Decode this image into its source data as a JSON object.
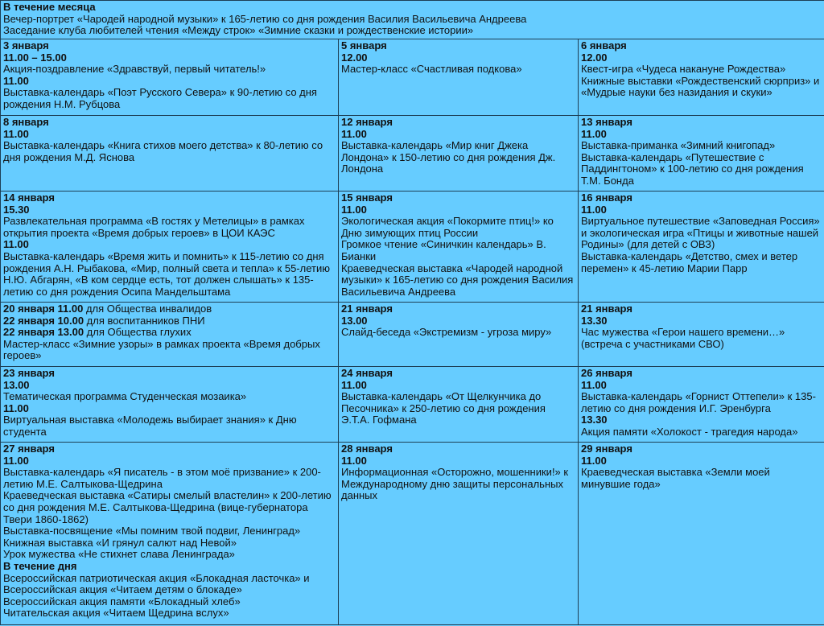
{
  "colors": {
    "background": "#66ccff",
    "border": "#1d3f55",
    "text": "#111111"
  },
  "month_section": {
    "lines": [
      {
        "b": "В течение месяца"
      },
      {
        "t": "Вечер-портрет «Чародей народной музыки» к 165-летию со дня рождения Василия Васильевича Андреева"
      },
      {
        "t": "Заседание клуба любителей чтения «Между строк» «Зимние сказки и рождественские истории»"
      }
    ]
  },
  "rows": [
    [
      {
        "lines": [
          {
            "b": "3 января"
          },
          {
            "b": "11.00 – 15.00"
          },
          {
            "t": "Акция-поздравление «Здравствуй, первый читатель!»"
          },
          {
            "b": "11.00"
          },
          {
            "t": "Выставка-календарь «Поэт Русского Севера» к 90-летию со дня рождения Н.М. Рубцова"
          }
        ]
      },
      {
        "lines": [
          {
            "b": "5 января"
          },
          {
            "b": "12.00"
          },
          {
            "t": "Мастер-класс «Счастливая подкова»"
          }
        ]
      },
      {
        "lines": [
          {
            "b": "6 января"
          },
          {
            "b": "12.00"
          },
          {
            "t": "Квест-игра «Чудеса накануне Рождества»"
          },
          {
            "t": "Книжные выставки «Рождественский сюрприз» и «Мудрые науки без назидания и скуки»"
          }
        ]
      }
    ],
    [
      {
        "lines": [
          {
            "b": "8 января"
          },
          {
            "b": "11.00"
          },
          {
            "t": "Выставка-календарь «Книга стихов моего детства» к 80-летию со дня рождения М.Д. Яснова"
          }
        ]
      },
      {
        "lines": [
          {
            "b": "12 января"
          },
          {
            "b": "11.00"
          },
          {
            "t": "Выставка-календарь «Мир книг Джека Лондона» к 150-летию со дня рождения Дж. Лондона"
          }
        ]
      },
      {
        "lines": [
          {
            "b": "13 января"
          },
          {
            "b": "11.00"
          },
          {
            "t": "Выставка-приманка «Зимний книгопад»"
          },
          {
            "t": "Выставка-календарь «Путешествие с Паддингтоном» к 100-летию со дня рождения Т.М. Бонда"
          }
        ]
      }
    ],
    [
      {
        "lines": [
          {
            "b": "14 января"
          },
          {
            "b": "15.30"
          },
          {
            "t": "Развлекательная программа «В гостях у Метелицы» в рамках открытия проекта «Время добрых героев» в ЦОИ КАЭС"
          },
          {
            "b": "11.00"
          },
          {
            "t": "Выставка-календарь «Время жить и помнить» к 115-летию со дня рождения А.Н. Рыбакова, «Мир, полный света и тепла» к 55-летию Н.Ю. Абгарян, «В ком сердце есть, тот должен слышать» к 135-летию со дня рождения Осипа Мандельштама"
          }
        ]
      },
      {
        "lines": [
          {
            "b": "15 января"
          },
          {
            "b": "11.00"
          },
          {
            "t": "Экологическая акция «Покормите птиц!» ко Дню зимующих птиц России"
          },
          {
            "t": "Громкое чтение «Синичкин календарь» В. Бианки"
          },
          {
            "t": "Краеведческая выставка «Чародей народной музыки» к 165-летию со дня рождения Василия Васильевича Андреева"
          }
        ]
      },
      {
        "lines": [
          {
            "b": "16 января"
          },
          {
            "b": "11.00"
          },
          {
            "t": "Виртуальное путешествие «Заповедная Россия» и экологическая игра «Птицы и животные нашей Родины» (для детей с ОВЗ)"
          },
          {
            "t": "Выставка-календарь «Детство, смех и ветер перемен» к 45-летию Марии Парр"
          }
        ]
      }
    ],
    [
      {
        "lines": [
          {
            "b": "20 января 11.00",
            "t": " для Общества инвалидов"
          },
          {
            "b": "22 января 10.00",
            "t": " для воспитанников ПНИ"
          },
          {
            "b": "22 января 13.00",
            "t": " для Общества глухих"
          },
          {
            "t": "Мастер-класс «Зимние узоры» в рамках проекта «Время добрых героев»"
          }
        ]
      },
      {
        "lines": [
          {
            "b": "21 января"
          },
          {
            "b": "13.00"
          },
          {
            "t": "Слайд-беседа «Экстремизм - угроза миру»"
          }
        ]
      },
      {
        "lines": [
          {
            "b": "21 января"
          },
          {
            "b": "13.30"
          },
          {
            "t": "Час мужества «Герои нашего времени…» (встреча с участниками СВО)"
          }
        ]
      }
    ],
    [
      {
        "lines": [
          {
            "b": "23 января"
          },
          {
            "b": "13.00"
          },
          {
            "t": "Тематическая программа Студенческая мозаика»"
          },
          {
            "b": "11.00"
          },
          {
            "t": "Виртуальная выставка «Молодежь выбирает знания» к Дню студента"
          }
        ]
      },
      {
        "lines": [
          {
            "b": "24 января"
          },
          {
            "b": "11.00"
          },
          {
            "t": "Выставка-календарь «От Щелкунчика до Песочника» к 250-летию со дня рождения Э.Т.А. Гофмана"
          }
        ]
      },
      {
        "lines": [
          {
            "b": "26 января"
          },
          {
            "b": "11.00"
          },
          {
            "t": "Выставка-календарь «Горнист Оттепели» к 135-летию со дня рождения И.Г. Эренбурга"
          },
          {
            "b": "13.30"
          },
          {
            "t": "Акция памяти «Холокост - трагедия народа»"
          }
        ]
      }
    ],
    [
      {
        "lines": [
          {
            "b": "27 января"
          },
          {
            "b": "11.00"
          },
          {
            "t": "Выставка-календарь «Я писатель - в этом моё призвание» к 200-летию М.Е. Салтыкова-Щедрина"
          },
          {
            "t": "Краеведческая выставка «Сатиры смелый властелин» к 200-летию со дня рождения М.Е. Салтыкова-Щедрина (вице-губернатора Твери 1860-1862)"
          },
          {
            "t": "Выставка-посвящение «Мы помним твой подвиг, Ленинград»"
          },
          {
            "t": "Книжная выставка «И грянул салют над Невой»"
          },
          {
            "t": "Урок мужества «Не стихнет слава Ленинграда»"
          },
          {
            "b": "В течение дня"
          },
          {
            "t": "Всероссийская патриотическая акция «Блокадная ласточка» и Всероссийская акция «Читаем детям о блокаде»"
          },
          {
            "t": "Всероссийская акция памяти «Блокадный хлеб»"
          },
          {
            "t": "Читательская акция «Читаем Щедрина вслух»"
          }
        ]
      },
      {
        "lines": [
          {
            "b": "28 января"
          },
          {
            "b": "11.00"
          },
          {
            "t": "Информационная «Осторожно, мошенники!» к Международному дню защиты персональных данных"
          }
        ]
      },
      {
        "lines": [
          {
            "b": "29 января"
          },
          {
            "b": "11.00"
          },
          {
            "t": "Краеведческая выставка «Земли моей минувшие года»"
          }
        ]
      }
    ]
  ]
}
